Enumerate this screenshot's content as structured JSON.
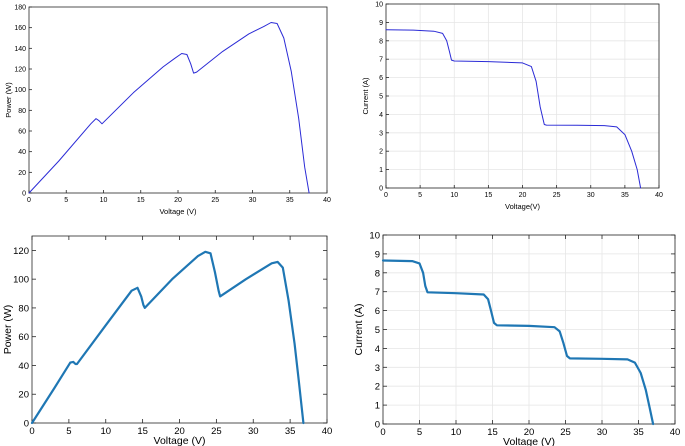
{
  "chart_data": [
    {
      "type": "line",
      "xlabel": "Voltage (V)",
      "ylabel": "Power (W)",
      "xlim": [
        0,
        40
      ],
      "ylim": [
        0,
        180
      ],
      "xticks": [
        0,
        5,
        10,
        15,
        20,
        25,
        30,
        35,
        40
      ],
      "yticks": [
        0,
        20,
        40,
        60,
        80,
        100,
        120,
        140,
        160,
        180
      ],
      "grid": false,
      "line_color": "#2b2bd6",
      "series": [
        {
          "x": [
            0,
            4,
            8.3,
            9.0,
            9.4,
            9.8,
            14,
            18,
            19.5,
            20.5,
            21.2,
            21.7,
            22.1,
            22.5,
            26,
            29.5,
            31.5,
            32.5,
            33.3,
            34.2,
            35.2,
            36.2,
            37.0,
            37.6
          ],
          "y": [
            0,
            31,
            67,
            72,
            70,
            67,
            97,
            122,
            130,
            135,
            134,
            125,
            116,
            117,
            137,
            154,
            161,
            165,
            164,
            150,
            118,
            72,
            25,
            0
          ]
        }
      ]
    },
    {
      "type": "line",
      "xlabel": "Voltage(V)",
      "ylabel": "Current (A)",
      "xlim": [
        0,
        40
      ],
      "ylim": [
        0,
        10
      ],
      "xticks": [
        0,
        5,
        10,
        15,
        20,
        25,
        30,
        35,
        40
      ],
      "yticks": [
        0,
        1,
        2,
        3,
        4,
        5,
        6,
        7,
        8,
        9,
        10
      ],
      "grid": true,
      "line_color": "#2b2bd6",
      "series": [
        {
          "x": [
            0,
            4,
            7,
            8.3,
            8.9,
            9.3,
            9.6,
            10,
            15,
            20,
            21.3,
            22.0,
            22.6,
            23.2,
            23.5,
            28,
            32,
            33.8,
            35,
            36,
            36.8,
            37.3
          ],
          "y": [
            8.6,
            8.58,
            8.52,
            8.4,
            8.0,
            7.4,
            6.95,
            6.9,
            6.87,
            6.8,
            6.6,
            5.8,
            4.4,
            3.45,
            3.42,
            3.41,
            3.39,
            3.32,
            2.9,
            2.0,
            1.0,
            0
          ]
        }
      ]
    },
    {
      "type": "line",
      "xlabel": "Voltage (V)",
      "ylabel": "Power (W)",
      "xlim": [
        0,
        40
      ],
      "ylim": [
        0,
        130
      ],
      "xticks": [
        0,
        5,
        10,
        15,
        20,
        25,
        30,
        35,
        40
      ],
      "yticks": [
        0,
        20,
        40,
        60,
        80,
        100,
        120
      ],
      "grid": false,
      "line_color": "#1f77b4",
      "series": [
        {
          "x": [
            0,
            3,
            5.2,
            5.6,
            5.9,
            6.1,
            10,
            13.5,
            14.3,
            14.8,
            15.1,
            15.3,
            19,
            22.5,
            23.5,
            24.2,
            24.8,
            25.3,
            25.5,
            29,
            32.5,
            33.3,
            34.0,
            34.8,
            35.6,
            36.2,
            36.8
          ],
          "y": [
            0,
            24,
            42,
            42.5,
            41,
            41,
            68,
            92,
            94,
            88,
            82,
            80,
            100,
            116,
            119,
            118,
            105,
            92,
            88,
            100,
            111,
            112,
            108,
            85,
            55,
            28,
            0
          ]
        }
      ]
    },
    {
      "type": "line",
      "xlabel": "Voltage (V)",
      "ylabel": "Current (A)",
      "xlim": [
        0,
        40
      ],
      "ylim": [
        0,
        10
      ],
      "xticks": [
        0,
        5,
        10,
        15,
        20,
        25,
        30,
        35,
        40
      ],
      "yticks": [
        0,
        1,
        2,
        3,
        4,
        5,
        6,
        7,
        8,
        9,
        10
      ],
      "grid": true,
      "line_color": "#1f77b4",
      "series": [
        {
          "x": [
            0,
            4,
            5.0,
            5.5,
            5.8,
            6.1,
            10,
            13.8,
            14.4,
            14.8,
            15.2,
            15.6,
            20,
            23.5,
            24.2,
            24.7,
            25.2,
            25.6,
            30,
            33.5,
            34.5,
            35.3,
            36.0,
            36.5,
            37.0
          ],
          "y": [
            8.65,
            8.62,
            8.5,
            8.0,
            7.3,
            6.97,
            6.92,
            6.85,
            6.6,
            6.0,
            5.35,
            5.22,
            5.19,
            5.12,
            4.9,
            4.3,
            3.6,
            3.47,
            3.45,
            3.42,
            3.25,
            2.7,
            1.8,
            0.9,
            0
          ]
        }
      ]
    }
  ]
}
